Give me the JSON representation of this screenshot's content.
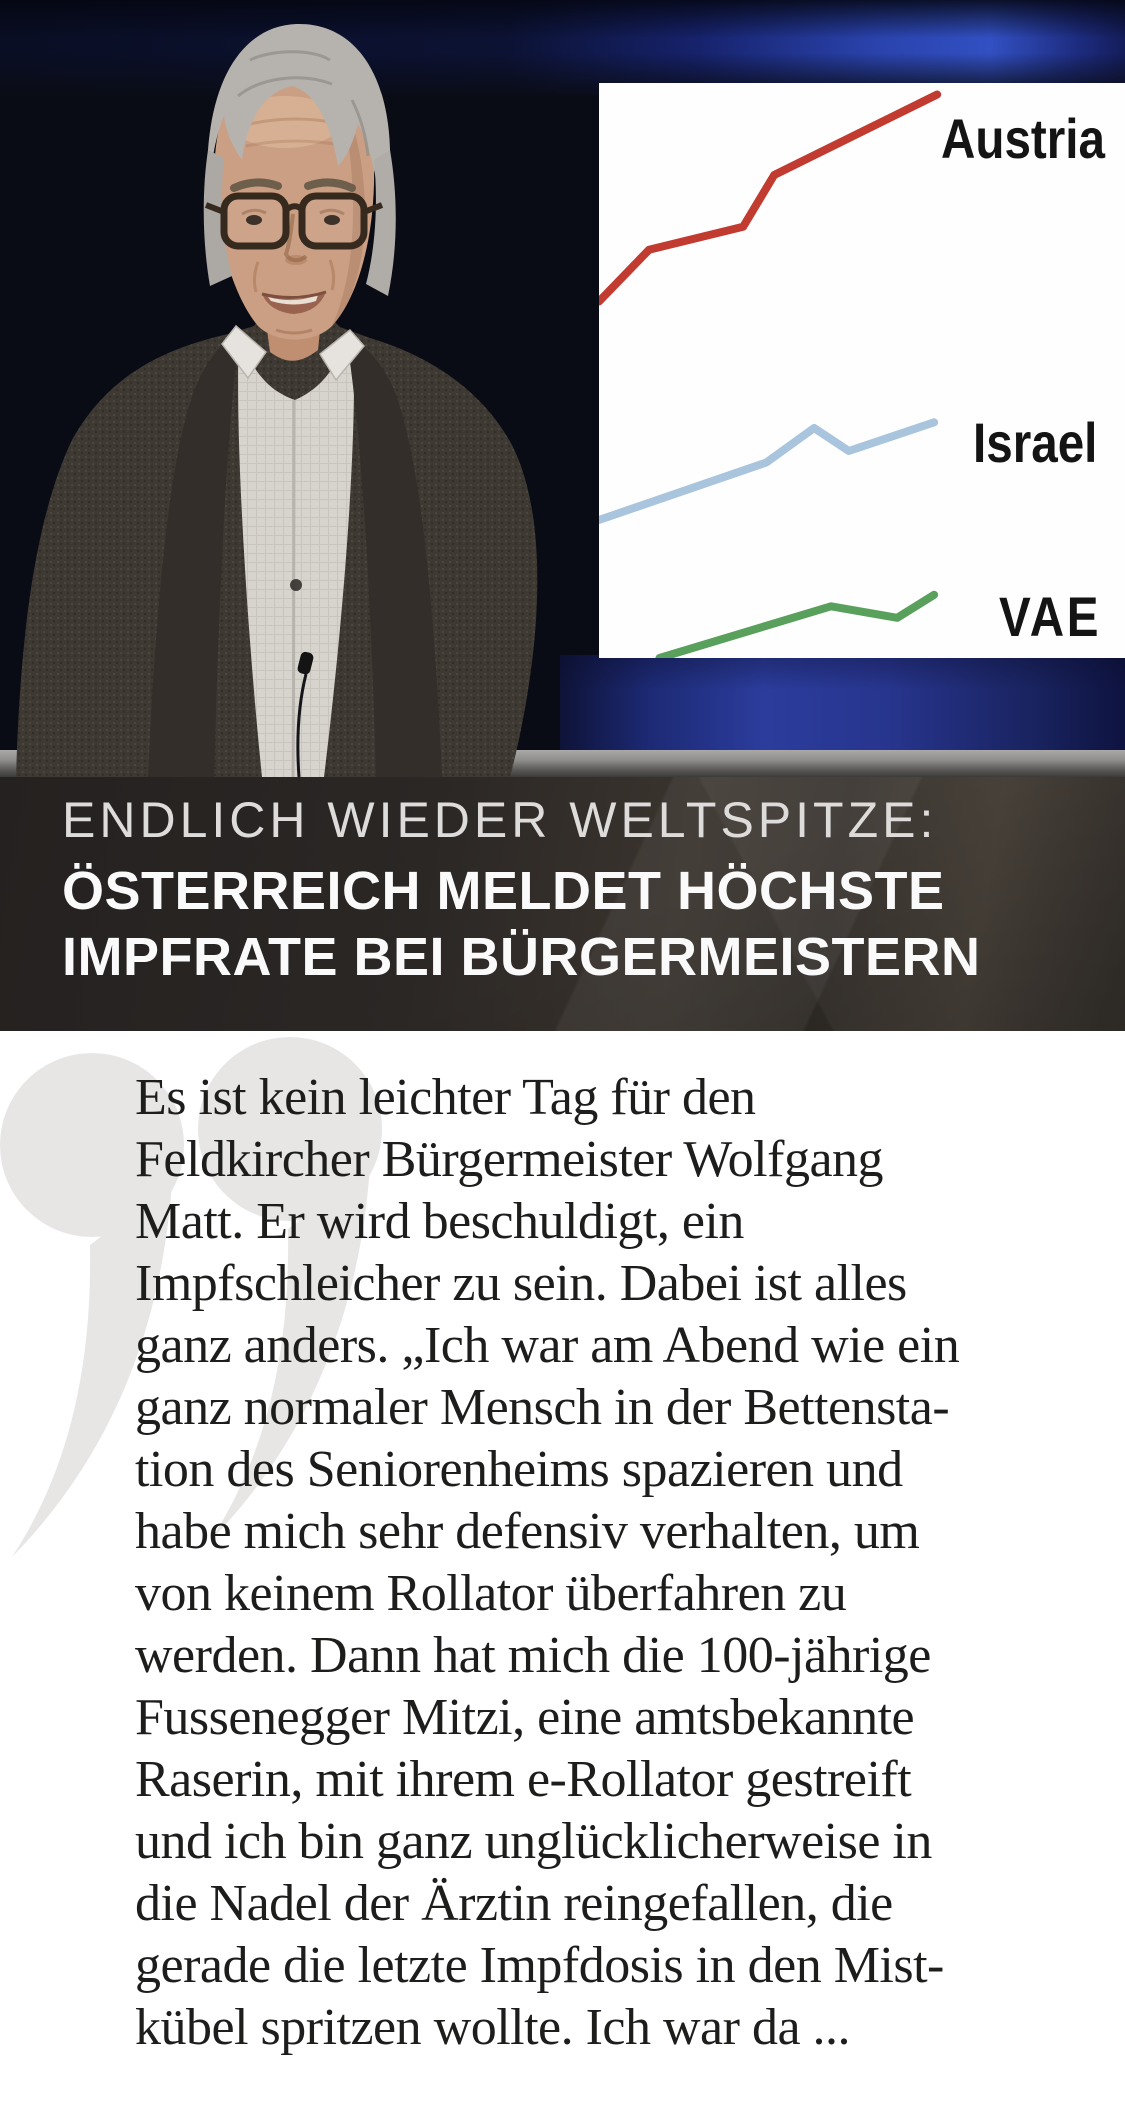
{
  "headline": {
    "kicker": "ENDLICH WIEDER WELTSPITZE:",
    "line1": "ÖSTERREICH MELDET HÖCHSTE",
    "line2": "IMPFRATE BEI BÜRGERMEISTERN"
  },
  "quote": {
    "mark": "”",
    "lines": [
      "Es ist kein leichter Tag für den",
      "Feldkircher Bürgermeister Wolfgang",
      "Matt. Er wird beschuldigt, ein",
      "Impfschleicher zu sein. Dabei ist alles",
      "ganz anders. „Ich war am Abend wie ein",
      "ganz normaler Mensch in der Bettensta-",
      "tion des Seniorenheims spazieren und",
      "habe mich sehr defensiv verhalten, um",
      "von keinem Rollator überfahren zu",
      "werden. Dann hat mich die 100-jährige",
      "Fussenegger Mitzi, eine amtsbekannte",
      "Raserin, mit ihrem e-Rollator gestreift",
      "und ich bin ganz unglücklicherweise in",
      "die Nadel der Ärztin reingefallen, die",
      "gerade die letzte Impfdosis in den Mist-",
      "kübel spritzen wollte. Ich war da ..."
    ]
  },
  "chart_data": {
    "type": "line",
    "title": "",
    "xlabel": "",
    "ylabel": "",
    "grid": false,
    "axes_visible": false,
    "legend_position": "labels-right-of-line-ends",
    "background": "#fefefe",
    "ylim": [
      0,
      100
    ],
    "note": "no axis ticks shown in image; values estimated from line heights (0 = panel bottom, 100 = panel top), x as fraction of panel width",
    "series": [
      {
        "name": "Austria",
        "color": "#c23b30",
        "x_frac": [
          0,
          0.095,
          0.274,
          0.333,
          0.643
        ],
        "values": [
          62,
          71,
          75,
          84,
          98
        ]
      },
      {
        "name": "Israel",
        "color": "#a9c4dd",
        "x_frac": [
          0,
          0.318,
          0.409,
          0.475,
          0.637
        ],
        "values": [
          24,
          34,
          40,
          36,
          41
        ]
      },
      {
        "name": "VAE",
        "color": "#58a05c",
        "x_frac": [
          0.115,
          0.441,
          0.567,
          0.637
        ],
        "values": [
          0,
          9,
          7,
          11
        ]
      }
    ]
  },
  "colors": {
    "banner_background": "#2e2925",
    "headline_text": "#fbfafa",
    "kicker_text": "#dedcda",
    "quote_text": "#1d1d1b",
    "quote_mark": "#e8e6e5",
    "studio_blue": "#2b3c9c"
  }
}
